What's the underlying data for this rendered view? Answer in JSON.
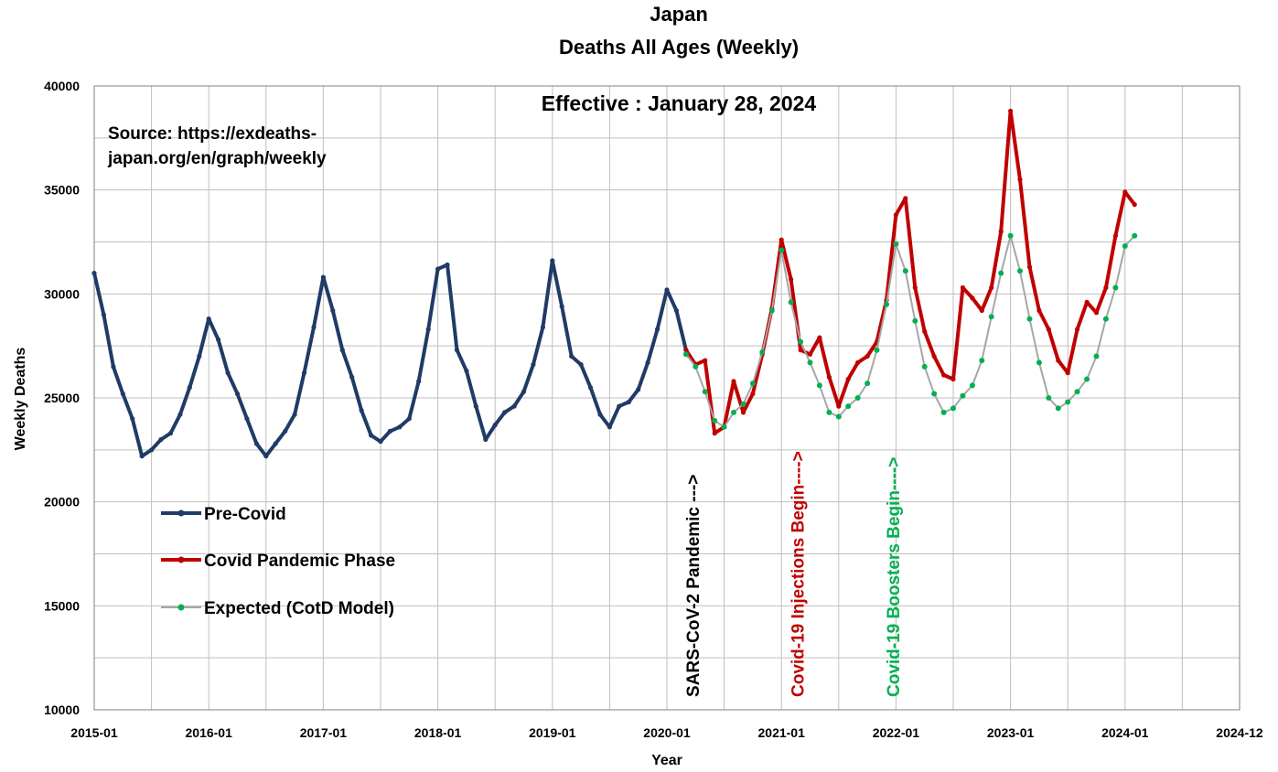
{
  "chart_data": {
    "type": "line",
    "title": "Japan",
    "subtitle": "Deaths All Ages (Weekly)",
    "effective_label": "Effective : January 28, 2024",
    "source_lines": [
      "Source: https://exdeaths-",
      "japan.org/en/graph/weekly"
    ],
    "xlabel": "Year",
    "ylabel": "Weekly Deaths",
    "ylim": [
      10000,
      40000
    ],
    "x_range": [
      "2015-01",
      "2025-01"
    ],
    "grid": true,
    "legend_placement": "lower-left",
    "y_ticks": [
      "10000",
      "15000",
      "20000",
      "25000",
      "30000",
      "35000",
      "40000"
    ],
    "x_ticks": [
      "2015-01",
      "2016-01",
      "2017-01",
      "2018-01",
      "2019-01",
      "2020-01",
      "2021-01",
      "2022-01",
      "2023-01",
      "2024-01",
      "2024-12"
    ],
    "annotations": [
      {
        "text": "SARS-CoV-2 Pandemic --->",
        "date": "2020-03",
        "color": "#000000"
      },
      {
        "text": "Covid-19 Injections Begin---->",
        "date": "2021-02",
        "color": "#c00000"
      },
      {
        "text": "Covid-19 Boosters Begin---->",
        "date": "2021-12",
        "color": "#00b050"
      }
    ],
    "series": [
      {
        "name": "Pre-Covid",
        "color": "#1f3b66",
        "points": [
          [
            "2015-01",
            31000
          ],
          [
            "2015-02",
            29000
          ],
          [
            "2015-03",
            26500
          ],
          [
            "2015-04",
            25200
          ],
          [
            "2015-05",
            24000
          ],
          [
            "2015-06",
            22200
          ],
          [
            "2015-07",
            22500
          ],
          [
            "2015-08",
            23000
          ],
          [
            "2015-09",
            23300
          ],
          [
            "2015-10",
            24200
          ],
          [
            "2015-11",
            25500
          ],
          [
            "2015-12",
            27000
          ],
          [
            "2016-01",
            28800
          ],
          [
            "2016-02",
            27800
          ],
          [
            "2016-03",
            26200
          ],
          [
            "2016-04",
            25200
          ],
          [
            "2016-05",
            24000
          ],
          [
            "2016-06",
            22800
          ],
          [
            "2016-07",
            22200
          ],
          [
            "2016-08",
            22800
          ],
          [
            "2016-09",
            23400
          ],
          [
            "2016-10",
            24200
          ],
          [
            "2016-11",
            26200
          ],
          [
            "2016-12",
            28400
          ],
          [
            "2017-01",
            30800
          ],
          [
            "2017-02",
            29200
          ],
          [
            "2017-03",
            27300
          ],
          [
            "2017-04",
            26000
          ],
          [
            "2017-05",
            24400
          ],
          [
            "2017-06",
            23200
          ],
          [
            "2017-07",
            22900
          ],
          [
            "2017-08",
            23400
          ],
          [
            "2017-09",
            23600
          ],
          [
            "2017-10",
            24000
          ],
          [
            "2017-11",
            25800
          ],
          [
            "2017-12",
            28300
          ],
          [
            "2018-01",
            31200
          ],
          [
            "2018-02",
            31400
          ],
          [
            "2018-03",
            27300
          ],
          [
            "2018-04",
            26300
          ],
          [
            "2018-05",
            24600
          ],
          [
            "2018-06",
            23000
          ],
          [
            "2018-07",
            23700
          ],
          [
            "2018-08",
            24300
          ],
          [
            "2018-09",
            24600
          ],
          [
            "2018-10",
            25300
          ],
          [
            "2018-11",
            26600
          ],
          [
            "2018-12",
            28400
          ],
          [
            "2019-01",
            31600
          ],
          [
            "2019-02",
            29400
          ],
          [
            "2019-03",
            27000
          ],
          [
            "2019-04",
            26600
          ],
          [
            "2019-05",
            25500
          ],
          [
            "2019-06",
            24200
          ],
          [
            "2019-07",
            23600
          ],
          [
            "2019-08",
            24600
          ],
          [
            "2019-09",
            24800
          ],
          [
            "2019-10",
            25400
          ],
          [
            "2019-11",
            26700
          ],
          [
            "2019-12",
            28300
          ],
          [
            "2020-01",
            30200
          ],
          [
            "2020-02",
            29200
          ],
          [
            "2020-03",
            27300
          ]
        ]
      },
      {
        "name": "Covid Pandemic Phase",
        "color": "#c00000",
        "points": [
          [
            "2020-03",
            27300
          ],
          [
            "2020-04",
            26600
          ],
          [
            "2020-05",
            26800
          ],
          [
            "2020-06",
            23300
          ],
          [
            "2020-07",
            23600
          ],
          [
            "2020-08",
            25800
          ],
          [
            "2020-09",
            24300
          ],
          [
            "2020-10",
            25200
          ],
          [
            "2020-11",
            27100
          ],
          [
            "2020-12",
            29300
          ],
          [
            "2021-01",
            32600
          ],
          [
            "2021-02",
            30700
          ],
          [
            "2021-03",
            27300
          ],
          [
            "2021-04",
            27100
          ],
          [
            "2021-05",
            27900
          ],
          [
            "2021-06",
            26000
          ],
          [
            "2021-07",
            24600
          ],
          [
            "2021-08",
            25900
          ],
          [
            "2021-09",
            26700
          ],
          [
            "2021-10",
            27000
          ],
          [
            "2021-11",
            27700
          ],
          [
            "2021-12",
            29700
          ],
          [
            "2022-01",
            33800
          ],
          [
            "2022-02",
            34600
          ],
          [
            "2022-03",
            30300
          ],
          [
            "2022-04",
            28200
          ],
          [
            "2022-05",
            27000
          ],
          [
            "2022-06",
            26100
          ],
          [
            "2022-07",
            25900
          ],
          [
            "2022-08",
            30300
          ],
          [
            "2022-09",
            29800
          ],
          [
            "2022-10",
            29200
          ],
          [
            "2022-11",
            30300
          ],
          [
            "2022-12",
            33000
          ],
          [
            "2023-01",
            38800
          ],
          [
            "2023-02",
            35500
          ],
          [
            "2023-03",
            31300
          ],
          [
            "2023-04",
            29200
          ],
          [
            "2023-05",
            28300
          ],
          [
            "2023-06",
            26800
          ],
          [
            "2023-07",
            26200
          ],
          [
            "2023-08",
            28300
          ],
          [
            "2023-09",
            29600
          ],
          [
            "2023-10",
            29100
          ],
          [
            "2023-11",
            30300
          ],
          [
            "2023-12",
            32800
          ],
          [
            "2024-01",
            34900
          ],
          [
            "2024-02",
            34300
          ]
        ]
      },
      {
        "name": "Expected (CotD Model)",
        "color": "#00b050",
        "line_color": "#a6a6a6",
        "points": [
          [
            "2020-03",
            27100
          ],
          [
            "2020-04",
            26500
          ],
          [
            "2020-05",
            25300
          ],
          [
            "2020-06",
            23900
          ],
          [
            "2020-07",
            23600
          ],
          [
            "2020-08",
            24300
          ],
          [
            "2020-09",
            24700
          ],
          [
            "2020-10",
            25700
          ],
          [
            "2020-11",
            27200
          ],
          [
            "2020-12",
            29200
          ],
          [
            "2021-01",
            32100
          ],
          [
            "2021-02",
            29600
          ],
          [
            "2021-03",
            27700
          ],
          [
            "2021-04",
            26700
          ],
          [
            "2021-05",
            25600
          ],
          [
            "2021-06",
            24300
          ],
          [
            "2021-07",
            24100
          ],
          [
            "2021-08",
            24600
          ],
          [
            "2021-09",
            25000
          ],
          [
            "2021-10",
            25700
          ],
          [
            "2021-11",
            27300
          ],
          [
            "2021-12",
            29500
          ],
          [
            "2022-01",
            32400
          ],
          [
            "2022-02",
            31100
          ],
          [
            "2022-03",
            28700
          ],
          [
            "2022-04",
            26500
          ],
          [
            "2022-05",
            25200
          ],
          [
            "2022-06",
            24300
          ],
          [
            "2022-07",
            24500
          ],
          [
            "2022-08",
            25100
          ],
          [
            "2022-09",
            25600
          ],
          [
            "2022-10",
            26800
          ],
          [
            "2022-11",
            28900
          ],
          [
            "2022-12",
            31000
          ],
          [
            "2023-01",
            32800
          ],
          [
            "2023-02",
            31100
          ],
          [
            "2023-03",
            28800
          ],
          [
            "2023-04",
            26700
          ],
          [
            "2023-05",
            25000
          ],
          [
            "2023-06",
            24500
          ],
          [
            "2023-07",
            24800
          ],
          [
            "2023-08",
            25300
          ],
          [
            "2023-09",
            25900
          ],
          [
            "2023-10",
            27000
          ],
          [
            "2023-11",
            28800
          ],
          [
            "2023-12",
            30300
          ],
          [
            "2024-01",
            32300
          ],
          [
            "2024-02",
            32800
          ]
        ]
      }
    ]
  }
}
